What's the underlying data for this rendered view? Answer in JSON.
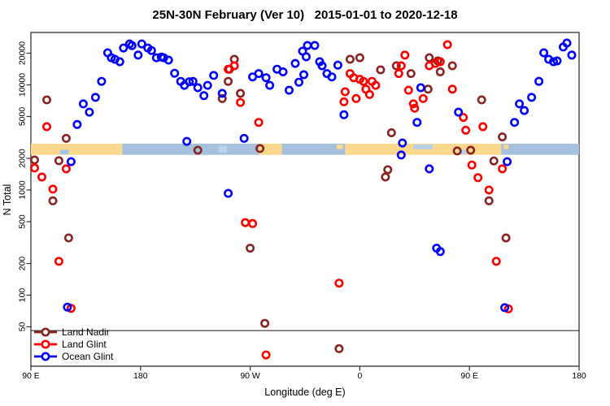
{
  "title": "25N-30N February (Ver 10)   2015-01-01 to 2020-12-18",
  "chart_data": {
    "type": "scatter",
    "xlabel": "Longitude (deg E)",
    "ylabel": "N Total",
    "x_axis": {
      "range": [
        90,
        540
      ],
      "ticks": [
        {
          "lon": 90,
          "label": "90 E"
        },
        {
          "lon": 180,
          "label": "180"
        },
        {
          "lon": 270,
          "label": "90 W"
        },
        {
          "lon": 360,
          "label": "0"
        },
        {
          "lon": 450,
          "label": "90 E"
        },
        {
          "lon": 540,
          "label": "180"
        }
      ]
    },
    "y_axis": {
      "scale": "log",
      "range": [
        25,
        30000
      ],
      "ticks": [
        50,
        100,
        200,
        500,
        1000,
        2000,
        5000,
        10000,
        20000
      ]
    },
    "reference_line_n": 46,
    "axis_color": "#2f2f2f",
    "map_band": {
      "n_top": 2760,
      "n_bottom": 2160,
      "ocean_color": "#A6C1DE",
      "land_color": "#FBD88C",
      "segments": [
        {
          "from": 90,
          "to": 165,
          "type": "land"
        },
        {
          "from": 165,
          "to": 277,
          "type": "ocean"
        },
        {
          "from": 277,
          "to": 296,
          "type": "land"
        },
        {
          "from": 296,
          "to": 348,
          "type": "ocean"
        },
        {
          "from": 348,
          "to": 476,
          "type": "land"
        },
        {
          "from": 476,
          "to": 540,
          "type": "ocean"
        }
      ],
      "details": [
        {
          "lon": 114,
          "w": 7,
          "pos": "bottom",
          "color": "#9FC4E8"
        },
        {
          "lon": 244,
          "w": 7,
          "pos": "mid",
          "color": "#BCD3EA"
        },
        {
          "lon": 341,
          "w": 5,
          "pos": "top",
          "color": "#FBD88C"
        },
        {
          "lon": 404,
          "w": 16,
          "pos": "top",
          "color": "#B7D0EA"
        },
        {
          "lon": 441,
          "w": 7,
          "pos": "bottom",
          "color": "#B7D0EA"
        },
        {
          "lon": 478,
          "w": 4,
          "pos": "top",
          "color": "#FBD88C"
        }
      ]
    },
    "series": [
      {
        "name": "Land Nadir",
        "color": "#8B2323",
        "points": [
          [
            103,
            7200
          ],
          [
            119,
            3100
          ],
          [
            93,
            1930
          ],
          [
            113,
            1900
          ],
          [
            108,
            790
          ],
          [
            121,
            350
          ],
          [
            252,
            10800
          ],
          [
            253,
            14100
          ],
          [
            257,
            17500
          ],
          [
            247,
            7400
          ],
          [
            262,
            8300
          ],
          [
            278,
            2480
          ],
          [
            227,
            2390
          ],
          [
            282,
            54
          ],
          [
            343,
            31
          ],
          [
            270,
            280
          ],
          [
            352,
            17500
          ],
          [
            360,
            18100
          ],
          [
            377,
            13900
          ],
          [
            390,
            15200
          ],
          [
            402,
            12800
          ],
          [
            416,
            9100
          ],
          [
            417,
            18100
          ],
          [
            424,
            16900
          ],
          [
            426,
            13300
          ],
          [
            436,
            15200
          ],
          [
            460,
            7200
          ],
          [
            477,
            3200
          ],
          [
            386,
            3500
          ],
          [
            383,
            1560
          ],
          [
            381,
            1330
          ],
          [
            440,
            2350
          ],
          [
            451,
            2390
          ],
          [
            470,
            1890
          ],
          [
            466,
            790
          ],
          [
            480,
            350
          ]
        ]
      },
      {
        "name": "Land Glint",
        "color": "#FE0000",
        "points": [
          [
            103,
            4000
          ],
          [
            99,
            1330
          ],
          [
            93,
            1620
          ],
          [
            108,
            1020
          ],
          [
            119,
            1590
          ],
          [
            113,
            210
          ],
          [
            123,
            75
          ],
          [
            252,
            14100
          ],
          [
            257,
            15200
          ],
          [
            262,
            6800
          ],
          [
            277,
            4400
          ],
          [
            266,
            490
          ],
          [
            272,
            480
          ],
          [
            283,
            27
          ],
          [
            348,
            8600
          ],
          [
            347,
            6900
          ],
          [
            352,
            12800
          ],
          [
            355,
            11700
          ],
          [
            360,
            11300
          ],
          [
            363,
            10800
          ],
          [
            370,
            10800
          ],
          [
            373,
            9900
          ],
          [
            365,
            9100
          ],
          [
            368,
            8100
          ],
          [
            357,
            7400
          ],
          [
            392,
            12800
          ],
          [
            394,
            15200
          ],
          [
            397,
            19200
          ],
          [
            400,
            8900
          ],
          [
            404,
            6600
          ],
          [
            405,
            6000
          ],
          [
            412,
            7400
          ],
          [
            417,
            15200
          ],
          [
            422,
            16000
          ],
          [
            426,
            16600
          ],
          [
            432,
            24100
          ],
          [
            436,
            9100
          ],
          [
            445,
            4900
          ],
          [
            447,
            3700
          ],
          [
            461,
            4000
          ],
          [
            343,
            130
          ],
          [
            452,
            1730
          ],
          [
            457,
            1310
          ],
          [
            477,
            1590
          ],
          [
            466,
            1000
          ],
          [
            472,
            210
          ],
          [
            482,
            74
          ]
        ]
      },
      {
        "name": "Ocean Glint",
        "color": "#0000FE",
        "points": [
          [
            128,
            4200
          ],
          [
            133,
            6600
          ],
          [
            138,
            5500
          ],
          [
            143,
            7600
          ],
          [
            148,
            10800
          ],
          [
            153,
            20200
          ],
          [
            156,
            18100
          ],
          [
            159,
            17500
          ],
          [
            163,
            16600
          ],
          [
            166,
            22400
          ],
          [
            171,
            24500
          ],
          [
            173,
            23600
          ],
          [
            178,
            19200
          ],
          [
            181,
            24500
          ],
          [
            186,
            22400
          ],
          [
            189,
            21200
          ],
          [
            193,
            18100
          ],
          [
            197,
            18400
          ],
          [
            199,
            18100
          ],
          [
            203,
            17200
          ],
          [
            208,
            12900
          ],
          [
            213,
            10800
          ],
          [
            216,
            9900
          ],
          [
            220,
            10700
          ],
          [
            223,
            10800
          ],
          [
            227,
            9400
          ],
          [
            232,
            7900
          ],
          [
            235,
            9900
          ],
          [
            240,
            12300
          ],
          [
            247,
            8300
          ],
          [
            272,
            11900
          ],
          [
            277,
            12800
          ],
          [
            283,
            11700
          ],
          [
            286,
            9900
          ],
          [
            292,
            14100
          ],
          [
            297,
            13300
          ],
          [
            302,
            8900
          ],
          [
            307,
            16000
          ],
          [
            313,
            20900
          ],
          [
            314,
            12500
          ],
          [
            310,
            10600
          ],
          [
            317,
            23700
          ],
          [
            323,
            23700
          ],
          [
            316,
            18500
          ],
          [
            327,
            16600
          ],
          [
            329,
            15200
          ],
          [
            333,
            12800
          ],
          [
            337,
            11900
          ],
          [
            342,
            15400
          ],
          [
            347,
            5200
          ],
          [
            395,
            2800
          ],
          [
            407,
            4400
          ],
          [
            410,
            9400
          ],
          [
            441,
            5500
          ],
          [
            487,
            4400
          ],
          [
            491,
            6600
          ],
          [
            495,
            5700
          ],
          [
            501,
            7600
          ],
          [
            507,
            10800
          ],
          [
            511,
            20200
          ],
          [
            515,
            17500
          ],
          [
            519,
            16600
          ],
          [
            522,
            16900
          ],
          [
            527,
            22900
          ],
          [
            530,
            25000
          ],
          [
            534,
            19200
          ],
          [
            123,
            1860
          ],
          [
            252,
            930
          ],
          [
            120,
            77
          ],
          [
            394,
            2150
          ],
          [
            417,
            1590
          ],
          [
            423,
            280
          ],
          [
            426,
            260
          ],
          [
            481,
            1860
          ],
          [
            479,
            76
          ],
          [
            218,
            2900
          ],
          [
            265,
            3100
          ]
        ]
      }
    ],
    "legend": {
      "position": "bottom-left"
    }
  }
}
